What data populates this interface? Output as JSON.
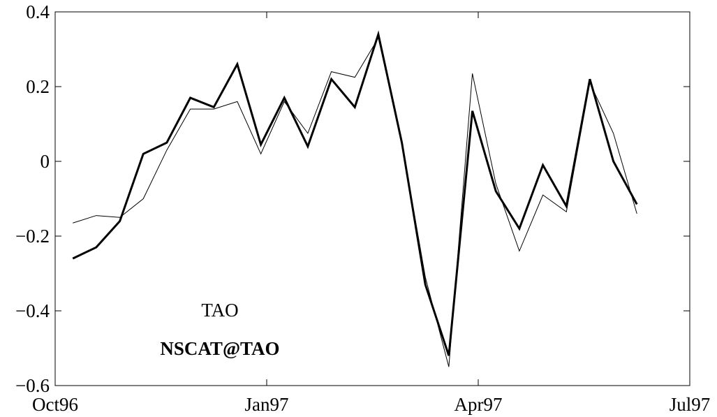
{
  "chart_data": {
    "type": "line",
    "xlim": [
      0,
      9
    ],
    "xticks": [
      {
        "value": 0,
        "label": "Oct96"
      },
      {
        "value": 3,
        "label": "Jan97"
      },
      {
        "value": 6,
        "label": "Apr97"
      },
      {
        "value": 9,
        "label": "Jul97"
      }
    ],
    "ylim": [
      -0.6,
      0.4
    ],
    "yticks": [
      {
        "value": -0.6,
        "label": "−0.6"
      },
      {
        "value": -0.4,
        "label": "−0.4"
      },
      {
        "value": -0.2,
        "label": "−0.2"
      },
      0,
      0.2,
      0.4
    ],
    "x": [
      0.25,
      0.583,
      0.917,
      1.25,
      1.583,
      1.917,
      2.25,
      2.583,
      2.917,
      3.25,
      3.583,
      3.917,
      4.25,
      4.583,
      4.917,
      5.25,
      5.583,
      5.917,
      6.25,
      6.583,
      6.917,
      7.25,
      7.583,
      7.917,
      8.25
    ],
    "series": [
      {
        "name": "TAO",
        "color": "#000000",
        "width": 1,
        "values": [
          -0.165,
          -0.145,
          -0.15,
          -0.1,
          0.03,
          0.14,
          0.14,
          0.16,
          0.02,
          0.16,
          0.075,
          0.24,
          0.225,
          0.33,
          0.05,
          -0.31,
          -0.55,
          0.235,
          -0.06,
          -0.24,
          -0.09,
          -0.135,
          0.21,
          0.075,
          -0.14
        ]
      },
      {
        "name": "NSCAT@TAO",
        "color": "#000000",
        "width": 3,
        "values": [
          -0.26,
          -0.23,
          -0.16,
          0.02,
          0.05,
          0.17,
          0.145,
          0.26,
          0.045,
          0.17,
          0.04,
          0.22,
          0.145,
          0.34,
          0.05,
          -0.33,
          -0.52,
          0.135,
          -0.08,
          -0.18,
          -0.01,
          -0.12,
          0.22,
          0,
          -0.115
        ]
      }
    ]
  }
}
